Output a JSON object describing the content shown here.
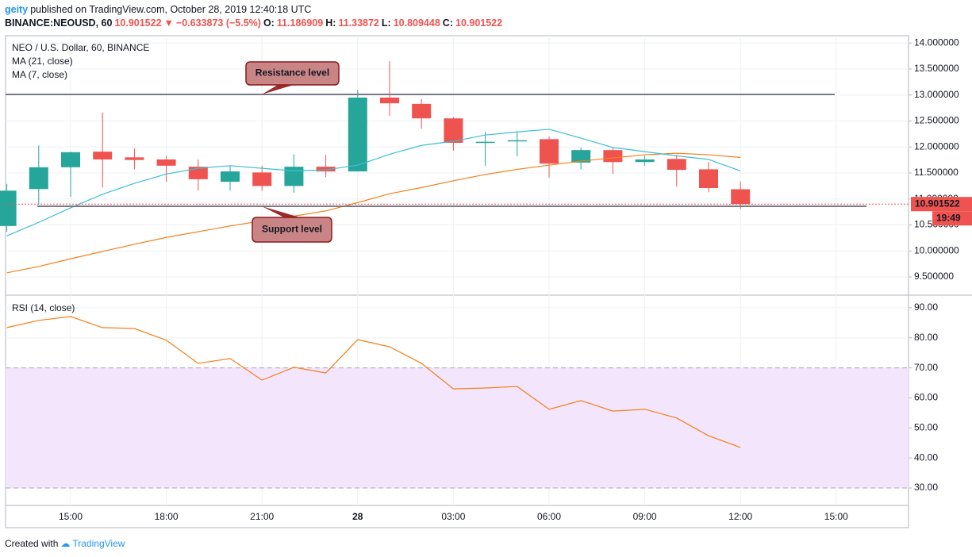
{
  "header": {
    "author": "geity",
    "published": "published on TradingView.com, October 28, 2019 12:40:18 UTC",
    "symbol": "BINANCE:NEOUSD, 60",
    "change": "−0.633873 (−5.5%)",
    "ohlc_labels": [
      "O:",
      "H:",
      "L:",
      "C:"
    ]
  },
  "footer": {
    "created": "Created with",
    "brand": "TradingView"
  },
  "chart_data": [
    {
      "type": "candlestick",
      "title": "NEO / U.S. Dollar, 60, BINANCE",
      "categories": [
        null,
        null,
        "15:00",
        null,
        null,
        "18:00",
        null,
        null,
        "21:00",
        null,
        null,
        "28",
        null,
        null,
        "03:00",
        null,
        null,
        "06:00",
        null,
        null,
        "09:00",
        null,
        null,
        "12:00",
        null,
        null,
        "15:00"
      ],
      "open": [
        10.48,
        11.19,
        11.61,
        11.91,
        11.8,
        11.76,
        11.62,
        11.33,
        11.51,
        11.25,
        11.62,
        11.53,
        12.95,
        12.83,
        12.55,
        12.08,
        12.11,
        12.15,
        11.7,
        11.94,
        11.71,
        11.77,
        11.57,
        11.186909,
        null,
        null,
        null
      ],
      "high": [
        11.29,
        12.03,
        11.91,
        12.66,
        11.97,
        11.83,
        11.76,
        11.64,
        11.64,
        11.86,
        11.85,
        13.1,
        13.65,
        12.92,
        12.57,
        12.29,
        12.29,
        12.2,
        11.99,
        11.99,
        11.83,
        11.85,
        11.71,
        11.33872,
        null,
        null,
        null
      ],
      "low": [
        10.37,
        10.89,
        11.04,
        11.22,
        11.57,
        11.33,
        11.16,
        11.16,
        11.16,
        11.12,
        11.42,
        11.53,
        12.6,
        12.35,
        11.93,
        11.64,
        11.82,
        11.41,
        11.57,
        11.48,
        11.64,
        11.24,
        11.13,
        10.809448,
        null,
        null,
        null
      ],
      "close": [
        11.16,
        11.61,
        11.9,
        11.76,
        11.75,
        11.64,
        11.38,
        11.53,
        11.25,
        11.62,
        11.53,
        12.95,
        12.84,
        12.55,
        12.08,
        12.1,
        12.13,
        11.68,
        11.94,
        11.71,
        11.76,
        11.56,
        11.21,
        10.901522,
        null,
        null,
        null
      ],
      "up_color": "#26a69a",
      "down_color": "#ef5350",
      "series": [
        {
          "name": "MA (21, close)",
          "color": "#f57f17",
          "values": [
            9.58,
            9.7,
            9.85,
            9.99,
            10.13,
            10.26,
            10.37,
            10.48,
            10.58,
            10.67,
            10.77,
            10.93,
            11.1,
            11.22,
            11.35,
            11.47,
            11.57,
            11.65,
            11.73,
            11.79,
            11.85,
            11.88,
            11.85,
            11.8,
            null,
            null,
            null
          ]
        },
        {
          "name": "MA (7, close)",
          "color": "#3bbfd6",
          "values": [
            10.29,
            10.55,
            10.83,
            11.09,
            11.3,
            11.48,
            11.59,
            11.64,
            11.59,
            11.54,
            11.56,
            11.65,
            11.86,
            12.03,
            12.11,
            12.23,
            12.29,
            12.34,
            12.17,
            11.99,
            11.91,
            11.83,
            11.76,
            11.54,
            null,
            null,
            null
          ]
        }
      ],
      "levels": [
        {
          "label": "Resistance level",
          "value": 13.01
        },
        {
          "label": "Support level",
          "value": 10.86
        }
      ],
      "level_color": "#787b86",
      "countdown": "19:49",
      "ylim": [
        9.15,
        14.14
      ],
      "yticks": [
        {
          "value": 9.5,
          "label": "9.500000"
        },
        {
          "value": 10,
          "label": "10.000000"
        },
        {
          "value": 10.5,
          "label": "10.500000"
        },
        {
          "value": 11,
          "label": "11.000000"
        },
        {
          "value": 11.5,
          "label": "11.500000"
        },
        {
          "value": 12,
          "label": "12.000000"
        },
        {
          "value": 12.5,
          "label": "12.500000"
        },
        {
          "value": 13,
          "label": "13.000000"
        },
        {
          "value": 13.5,
          "label": "13.500000"
        },
        {
          "value": 14,
          "label": "14.000000"
        }
      ],
      "grid": true
    },
    {
      "type": "line",
      "title": "RSI (14, close)",
      "series": [
        {
          "name": "RSI (14, close)",
          "color": "#f57f17",
          "values": [
            83.4,
            85.8,
            87.1,
            83.4,
            83.1,
            79.2,
            71.5,
            73.1,
            65.9,
            70.2,
            68.3,
            79.4,
            77.0,
            71.5,
            63.0,
            63.3,
            63.8,
            56.2,
            59.1,
            55.6,
            56.2,
            53.3,
            47.4,
            43.5,
            null,
            null,
            null
          ]
        }
      ],
      "band": [
        30,
        70
      ],
      "band_color": "#f3e5fc",
      "ylim": [
        24.2,
        94.2
      ],
      "yticks": [
        {
          "value": 30,
          "label": "30.00"
        },
        {
          "value": 40,
          "label": "40.00"
        },
        {
          "value": 50,
          "label": "50.00"
        },
        {
          "value": 60,
          "label": "60.00"
        },
        {
          "value": 70,
          "label": "70.00"
        },
        {
          "value": 80,
          "label": "80.00"
        },
        {
          "value": 90,
          "label": "90.00"
        }
      ],
      "grid": true
    }
  ]
}
